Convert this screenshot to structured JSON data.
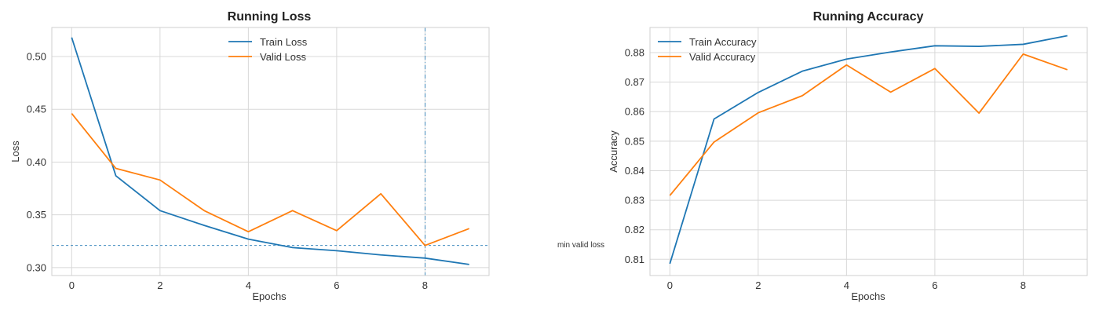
{
  "colors": {
    "train": "#1f77b4",
    "valid": "#ff7f0e",
    "grid": "#d8d8d8"
  },
  "chart_data": [
    {
      "type": "line",
      "title": "Running Loss",
      "xlabel": "Epochs",
      "ylabel": "Loss",
      "x": [
        0,
        1,
        2,
        3,
        4,
        5,
        6,
        7,
        8,
        9
      ],
      "xticks": [
        0,
        2,
        4,
        6,
        8
      ],
      "yticks": [
        0.3,
        0.35,
        0.4,
        0.45,
        0.5
      ],
      "ytick_labels": [
        "0.30",
        "0.35",
        "0.40",
        "0.45",
        "0.50"
      ],
      "xlim": [
        -0.45,
        9.45
      ],
      "ylim": [
        0.2925,
        0.5275
      ],
      "grid": true,
      "legend_position": "top-center",
      "series": [
        {
          "name": "Train Loss",
          "color": "#1f77b4",
          "values": [
            0.518,
            0.387,
            0.354,
            0.34,
            0.327,
            0.319,
            0.316,
            0.312,
            0.309,
            0.303
          ]
        },
        {
          "name": "Valid Loss",
          "color": "#ff7f0e",
          "values": [
            0.446,
            0.394,
            0.383,
            0.354,
            0.334,
            0.354,
            0.335,
            0.37,
            0.321,
            0.337
          ]
        }
      ],
      "annotations": {
        "min_valid_epoch": 8,
        "min_valid_loss": 0.321,
        "label": "min valid loss"
      }
    },
    {
      "type": "line",
      "title": "Running Accuracy",
      "xlabel": "Epochs",
      "ylabel": "Accuracy",
      "x": [
        0,
        1,
        2,
        3,
        4,
        5,
        6,
        7,
        8,
        9
      ],
      "xticks": [
        0,
        2,
        4,
        6,
        8
      ],
      "yticks": [
        0.81,
        0.82,
        0.83,
        0.84,
        0.85,
        0.86,
        0.87,
        0.88
      ],
      "ytick_labels": [
        "0.81",
        "0.82",
        "0.83",
        "0.84",
        "0.85",
        "0.86",
        "0.87",
        "0.88"
      ],
      "xlim": [
        -0.45,
        9.45
      ],
      "ylim": [
        0.8045,
        0.8885
      ],
      "grid": true,
      "legend_position": "top-left",
      "series": [
        {
          "name": "Train Accuracy",
          "color": "#1f77b4",
          "values": [
            0.8085,
            0.8575,
            0.8665,
            0.8737,
            0.8778,
            0.8802,
            0.8823,
            0.8821,
            0.8828,
            0.8857
          ]
        },
        {
          "name": "Valid Accuracy",
          "color": "#ff7f0e",
          "values": [
            0.8316,
            0.8497,
            0.8596,
            0.8654,
            0.8758,
            0.8666,
            0.8746,
            0.8595,
            0.8795,
            0.8742
          ]
        }
      ]
    }
  ]
}
